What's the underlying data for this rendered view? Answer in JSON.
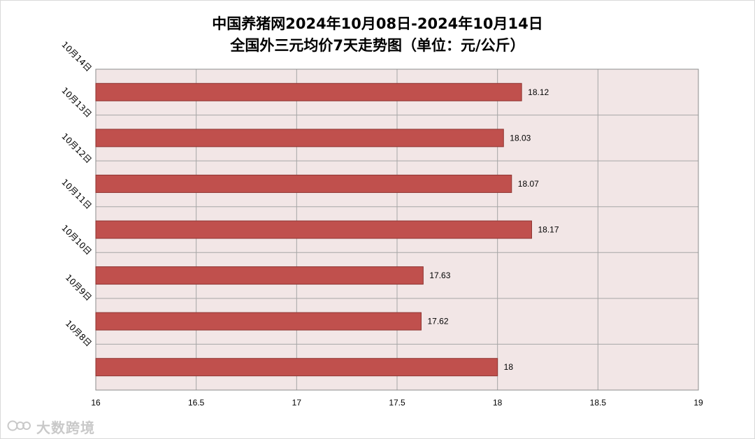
{
  "title_line1": "中国养猪网2024年10月08日-2024年10月14日",
  "title_line2": "全国外三元均价7天走势图（单位：元/公斤）",
  "watermark": "大数跨境",
  "colors": {
    "bar": "#C0504D",
    "bar_edge": "#8E3431",
    "plot_bg": "#F2E6E6",
    "grid": "#A6A6A6"
  },
  "chart_data": {
    "type": "bar",
    "orientation": "horizontal",
    "categories": [
      "10月14日",
      "10月13日",
      "10月12日",
      "10月11日",
      "10月10日",
      "10月9日",
      "10月8日"
    ],
    "values": [
      18.12,
      18.03,
      18.07,
      18.17,
      17.63,
      17.62,
      18
    ],
    "value_labels": [
      "18.12",
      "18.03",
      "18.07",
      "18.17",
      "17.63",
      "17.62",
      "18"
    ],
    "xlim": [
      16,
      19
    ],
    "xticks": [
      "16",
      "16.5",
      "17",
      "17.5",
      "18",
      "18.5",
      "19"
    ],
    "grid": true,
    "legend": "none"
  }
}
